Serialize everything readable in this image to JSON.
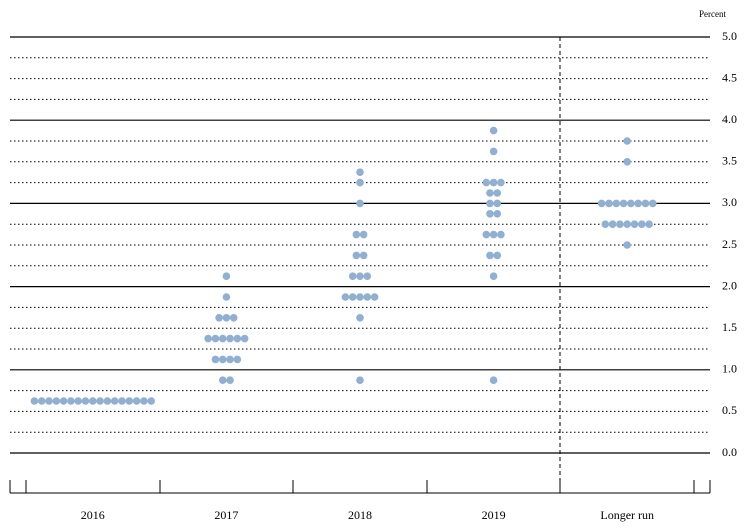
{
  "chart_data": {
    "type": "dot",
    "y_axis_label": "Percent",
    "categories": [
      "2016",
      "2017",
      "2018",
      "2019",
      "Longer run"
    ],
    "dots": [
      [
        {
          "rate": 0.625,
          "count": 17
        }
      ],
      [
        {
          "rate": 2.125,
          "count": 1
        },
        {
          "rate": 1.875,
          "count": 1
        },
        {
          "rate": 1.625,
          "count": 3
        },
        {
          "rate": 1.375,
          "count": 6
        },
        {
          "rate": 1.125,
          "count": 4
        },
        {
          "rate": 0.875,
          "count": 2
        }
      ],
      [
        {
          "rate": 3.375,
          "count": 1
        },
        {
          "rate": 3.25,
          "count": 1
        },
        {
          "rate": 3.0,
          "count": 1
        },
        {
          "rate": 2.625,
          "count": 2
        },
        {
          "rate": 2.375,
          "count": 2
        },
        {
          "rate": 2.125,
          "count": 3
        },
        {
          "rate": 1.875,
          "count": 5
        },
        {
          "rate": 1.625,
          "count": 1
        },
        {
          "rate": 0.875,
          "count": 1
        }
      ],
      [
        {
          "rate": 3.875,
          "count": 1
        },
        {
          "rate": 3.625,
          "count": 1
        },
        {
          "rate": 3.25,
          "count": 3
        },
        {
          "rate": 3.125,
          "count": 2
        },
        {
          "rate": 3.0,
          "count": 2
        },
        {
          "rate": 2.875,
          "count": 2
        },
        {
          "rate": 2.625,
          "count": 3
        },
        {
          "rate": 2.375,
          "count": 2
        },
        {
          "rate": 2.125,
          "count": 1
        },
        {
          "rate": 0.875,
          "count": 1
        }
      ],
      [
        {
          "rate": 3.75,
          "count": 1
        },
        {
          "rate": 3.5,
          "count": 1
        },
        {
          "rate": 3.0,
          "count": 8
        },
        {
          "rate": 2.75,
          "count": 7
        },
        {
          "rate": 2.5,
          "count": 1
        }
      ]
    ],
    "color": "#8fb0d3",
    "ylim": [
      0,
      5
    ],
    "yticks": [
      {
        "value": 0,
        "label": "0.0"
      },
      0.5,
      {
        "value": 1,
        "label": "1.0"
      },
      1.5,
      {
        "value": 2,
        "label": "2.0"
      },
      2.5,
      {
        "value": 3,
        "label": "3.0"
      },
      3.5,
      {
        "value": 4,
        "label": "4.0"
      },
      4.5,
      {
        "value": 5,
        "label": "5.0"
      }
    ],
    "grid_lines": [
      0,
      0.25,
      0.5,
      0.75,
      1,
      1.25,
      1.5,
      1.75,
      2,
      2.25,
      2.5,
      2.75,
      3,
      3.25,
      3.5,
      3.75,
      4,
      4.25,
      4.5,
      4.75,
      5
    ]
  }
}
